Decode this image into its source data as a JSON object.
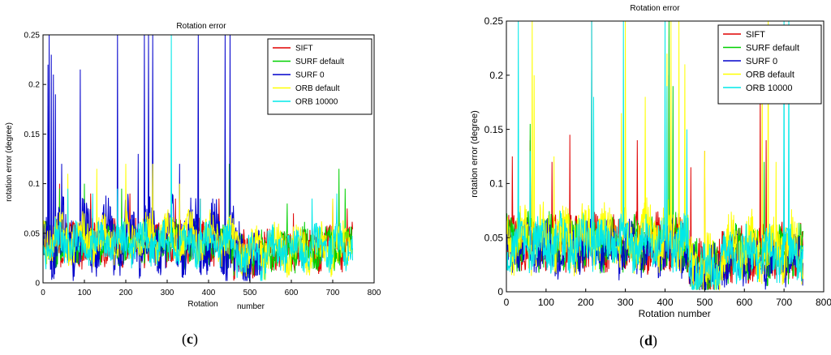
{
  "chart_data": [
    {
      "type": "line",
      "title": "Rotation error",
      "xlabel_part1": "Rotation",
      "xlabel_part2": "number",
      "ylabel": "rotation error (degree)",
      "xlim": [
        0,
        800
      ],
      "ylim": [
        0,
        0.25
      ],
      "xticks": [
        0,
        100,
        200,
        300,
        400,
        500,
        600,
        700,
        800
      ],
      "yticks": [
        0,
        0.05,
        0.1,
        0.15,
        0.2,
        0.25
      ],
      "ytick_labels": [
        "0",
        "0.05",
        "0.1",
        "0.15",
        "0.2",
        "0.25"
      ],
      "grid": false,
      "legend_position": "top-right",
      "panel_label": "c",
      "n_points": 750,
      "series": [
        {
          "name": "SIFT",
          "color": "#e00000",
          "base": 0.04,
          "noise": 0.018,
          "low_tail": 0.015,
          "tail_start": 470,
          "tail_base": 0.035,
          "end_x": 748,
          "spikes": [
            [
              40,
              0.1
            ],
            [
              115,
              0.09
            ],
            [
              210,
              0.09
            ],
            [
              320,
              0.085
            ],
            [
              380,
              0.085
            ],
            [
              425,
              0.085
            ],
            [
              440,
              0.07
            ],
            [
              605,
              0.07
            ],
            [
              700,
              0.085
            ],
            [
              735,
              0.075
            ]
          ]
        },
        {
          "name": "SURF default",
          "color": "#00d000",
          "base": 0.04,
          "noise": 0.018,
          "low_tail": 0.015,
          "tail_start": 470,
          "tail_base": 0.035,
          "end_x": 748,
          "spikes": [
            [
              40,
              0.095
            ],
            [
              100,
              0.1
            ],
            [
              190,
              0.095
            ],
            [
              310,
              0.09
            ],
            [
              440,
              0.155
            ],
            [
              450,
              0.12
            ],
            [
              590,
              0.08
            ],
            [
              715,
              0.115
            ],
            [
              730,
              0.095
            ]
          ]
        },
        {
          "name": "SURF 0",
          "color": "#0000cc",
          "base": 0.045,
          "noise": 0.03,
          "low_tail": 0.01,
          "tail_start": 470,
          "tail_base": 0.04,
          "end_x": 530,
          "spikes": [
            [
              12,
              0.22
            ],
            [
              15,
              0.25
            ],
            [
              20,
              0.23
            ],
            [
              25,
              0.21
            ],
            [
              30,
              0.19
            ],
            [
              45,
              0.12
            ],
            [
              90,
              0.215
            ],
            [
              180,
              0.25
            ],
            [
              230,
              0.13
            ],
            [
              245,
              0.25
            ],
            [
              255,
              0.25
            ],
            [
              265,
              0.25
            ],
            [
              330,
              0.12
            ],
            [
              375,
              0.25
            ],
            [
              440,
              0.25
            ],
            [
              452,
              0.25
            ]
          ]
        },
        {
          "name": "ORB default",
          "color": "#ffff00",
          "base": 0.045,
          "noise": 0.02,
          "low_tail": 0.02,
          "tail_start": 470,
          "tail_base": 0.035,
          "end_x": 748,
          "spikes": [
            [
              60,
              0.11
            ],
            [
              130,
              0.115
            ],
            [
              200,
              0.12
            ],
            [
              265,
              0.12
            ],
            [
              330,
              0.1
            ],
            [
              700,
              0.085
            ]
          ]
        },
        {
          "name": "ORB 10000",
          "color": "#00e8e8",
          "base": 0.04,
          "noise": 0.018,
          "low_tail": 0.015,
          "tail_start": 470,
          "tail_base": 0.035,
          "end_x": 748,
          "spikes": [
            [
              60,
              0.095
            ],
            [
              120,
              0.09
            ],
            [
              180,
              0.095
            ],
            [
              310,
              0.25
            ],
            [
              380,
              0.085
            ],
            [
              650,
              0.085
            ],
            [
              710,
              0.09
            ]
          ]
        }
      ]
    },
    {
      "type": "line",
      "title": "Rotation error",
      "xlabel_part1": "Rotation",
      "xlabel_part2": "number",
      "ylabel": "rotation error (degree)",
      "xlim": [
        0,
        800
      ],
      "ylim": [
        0,
        0.25
      ],
      "xticks": [
        0,
        100,
        200,
        300,
        400,
        500,
        600,
        700,
        800
      ],
      "yticks": [
        0,
        0.05,
        0.1,
        0.15,
        0.2,
        0.25
      ],
      "ytick_labels": [
        "0",
        "0.05",
        "0.1",
        "0.15",
        "0.2",
        "0.25"
      ],
      "grid": false,
      "legend_position": "top-right",
      "panel_label": "d",
      "n_points": 750,
      "series": [
        {
          "name": "SIFT",
          "color": "#e00000",
          "base": 0.045,
          "noise": 0.02,
          "low_tail": 0.01,
          "tail_start": 470,
          "tail_base": 0.035,
          "end_x": 748,
          "spikes": [
            [
              15,
              0.125
            ],
            [
              60,
              0.14
            ],
            [
              115,
              0.12
            ],
            [
              160,
              0.145
            ],
            [
              215,
              0.25
            ],
            [
              330,
              0.14
            ],
            [
              410,
              0.2
            ],
            [
              465,
              0.115
            ],
            [
              500,
              0.13
            ],
            [
              640,
              0.185
            ],
            [
              655,
              0.14
            ],
            [
              700,
              0.12
            ]
          ]
        },
        {
          "name": "SURF default",
          "color": "#00d000",
          "base": 0.045,
          "noise": 0.02,
          "low_tail": 0.01,
          "tail_start": 470,
          "tail_base": 0.035,
          "end_x": 748,
          "spikes": [
            [
              30,
              0.15
            ],
            [
              60,
              0.155
            ],
            [
              215,
              0.18
            ],
            [
              410,
              0.25
            ],
            [
              420,
              0.19
            ],
            [
              650,
              0.12
            ]
          ]
        },
        {
          "name": "SURF 0",
          "color": "#0000cc",
          "base": 0.04,
          "noise": 0.02,
          "low_tail": 0.005,
          "tail_start": 470,
          "tail_base": 0.03,
          "end_x": 748,
          "spikes": [
            [
              60,
              0.1
            ],
            [
              215,
              0.09
            ],
            [
              400,
              0.1
            ],
            [
              500,
              0.04
            ]
          ]
        },
        {
          "name": "ORB default",
          "color": "#ffff00",
          "base": 0.05,
          "noise": 0.025,
          "low_tail": 0.01,
          "tail_start": 470,
          "tail_base": 0.04,
          "end_x": 748,
          "spikes": [
            [
              65,
              0.25
            ],
            [
              70,
              0.2
            ],
            [
              120,
              0.125
            ],
            [
              290,
              0.165
            ],
            [
              300,
              0.25
            ],
            [
              350,
              0.18
            ],
            [
              405,
              0.22
            ],
            [
              415,
              0.25
            ],
            [
              435,
              0.25
            ],
            [
              450,
              0.21
            ],
            [
              500,
              0.13
            ],
            [
              645,
              0.23
            ],
            [
              660,
              0.25
            ],
            [
              680,
              0.12
            ]
          ]
        },
        {
          "name": "ORB 10000",
          "color": "#00e8e8",
          "base": 0.045,
          "noise": 0.02,
          "low_tail": 0.01,
          "tail_start": 470,
          "tail_base": 0.035,
          "end_x": 748,
          "spikes": [
            [
              30,
              0.25
            ],
            [
              60,
              0.13
            ],
            [
              215,
              0.25
            ],
            [
              220,
              0.18
            ],
            [
              295,
              0.25
            ],
            [
              400,
              0.25
            ],
            [
              405,
              0.19
            ],
            [
              455,
              0.15
            ],
            [
              700,
              0.25
            ],
            [
              712,
              0.25
            ]
          ]
        }
      ]
    }
  ]
}
